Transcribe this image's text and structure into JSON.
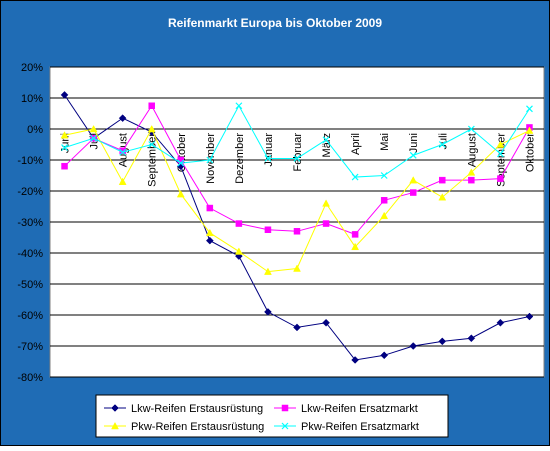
{
  "colors": {
    "chart_area": "#1f6cb5",
    "plot_area": "#ffffff",
    "gridline": "#000000",
    "title_text": "#ffffff",
    "axis_text": "#000000"
  },
  "chart_data": {
    "type": "line",
    "title": "Reifenmarkt Europa bis Oktober 2009",
    "categories": [
      "Juni",
      "Juli",
      "August",
      "September",
      "Oktober",
      "November",
      "Dezember",
      "Januar",
      "Februar",
      "März",
      "April",
      "Mai",
      "Juni",
      "Juli",
      "August",
      "September",
      "Oktober"
    ],
    "ylim": [
      -80,
      20
    ],
    "ytick_step": 10,
    "ytick_labels": [
      "20%",
      "10%",
      "0%",
      "-10%",
      "-20%",
      "-30%",
      "-40%",
      "-50%",
      "-60%",
      "-70%",
      "-80%"
    ],
    "grid": "horizontal",
    "legend_position": "bottom",
    "series": [
      {
        "name": "Lkw-Reifen Erstausrüstung",
        "color": "#000080",
        "marker": "diamond",
        "values": [
          11,
          -3,
          3.5,
          -1,
          -12,
          -36,
          -41,
          -59,
          -64,
          -62.5,
          -74.5,
          -73,
          -70,
          -68.5,
          -67.5,
          -62.5,
          -60.5
        ]
      },
      {
        "name": "Lkw-Reifen Ersatzmarkt",
        "color": "#ff00ff",
        "marker": "square",
        "values": [
          -12,
          -3,
          -7,
          7.5,
          -10,
          -25.5,
          -30.5,
          -32.5,
          -33,
          -30.5,
          -34,
          -23,
          -20.5,
          -16.5,
          -16.5,
          -16,
          0.5
        ]
      },
      {
        "name": "Pkw-Reifen Erstausrüstung",
        "color": "#ffff00",
        "marker": "triangle",
        "values": [
          -2,
          0,
          -17,
          0,
          -21,
          -33.5,
          -39.5,
          -46,
          -45,
          -24,
          -38,
          -28,
          -16.5,
          -22,
          -14,
          -5,
          -0.5
        ]
      },
      {
        "name": "Pkw-Reifen Ersatzmarkt",
        "color": "#00ffff",
        "marker": "x",
        "values": [
          -6,
          -3,
          -7.5,
          -5,
          -11,
          -10,
          7.5,
          -9.5,
          -9.5,
          -3.5,
          -15.5,
          -15,
          -8.5,
          -5,
          0,
          -8,
          6.5
        ]
      }
    ]
  }
}
